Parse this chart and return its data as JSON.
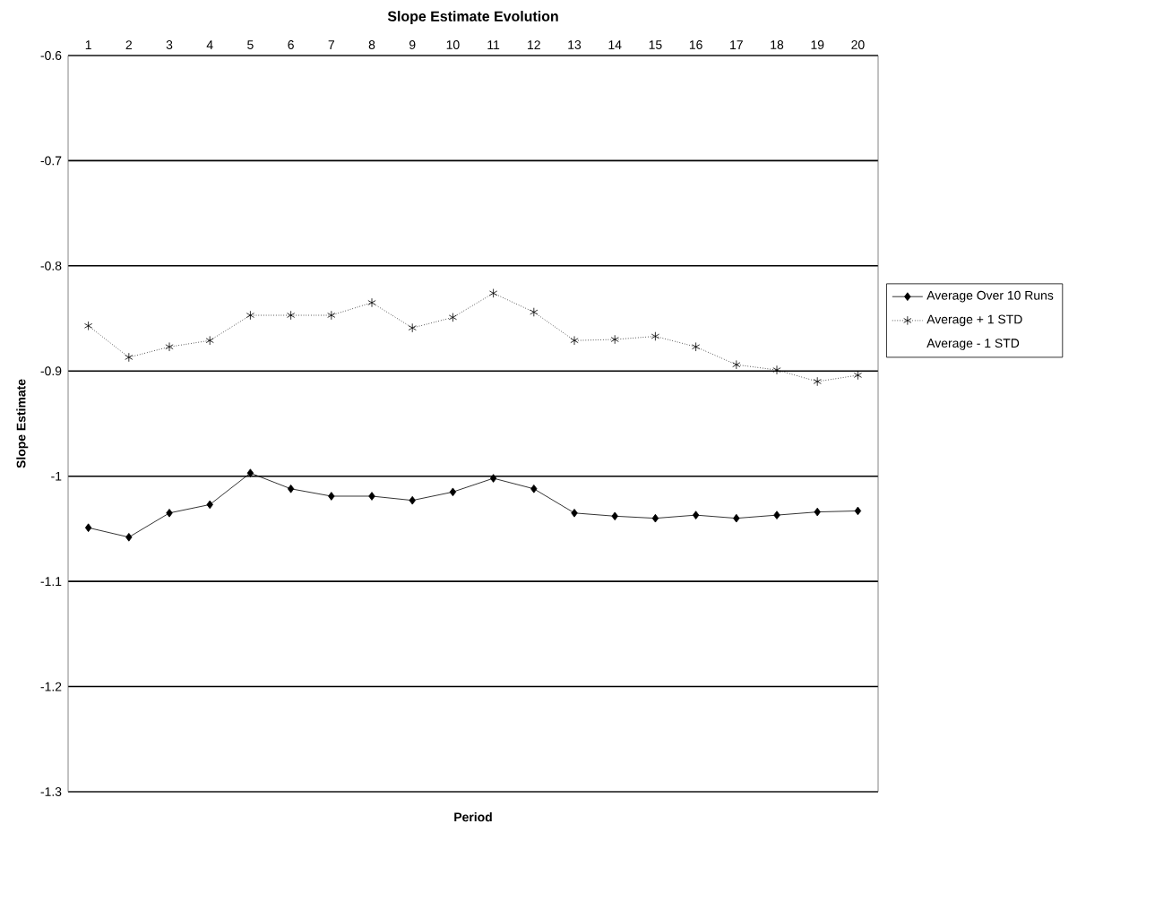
{
  "chart_data": {
    "type": "line",
    "title": "Slope Estimate Evolution",
    "xlabel": "Period",
    "ylabel": "Slope Estimate",
    "categories": [
      "1",
      "2",
      "3",
      "4",
      "5",
      "6",
      "7",
      "8",
      "9",
      "10",
      "11",
      "12",
      "13",
      "14",
      "15",
      "16",
      "17",
      "18",
      "19",
      "20"
    ],
    "ylim": [
      -1.3,
      -0.6
    ],
    "yticks": [
      -1.3,
      -1.2,
      -1.1,
      -1,
      -0.9,
      -0.8,
      -0.7,
      -0.6
    ],
    "grid": "y",
    "legend": "right",
    "series": [
      {
        "name": "Average Over 10 Runs",
        "color": "#000000",
        "marker": "diamond",
        "line_style": "solid",
        "values": [
          -1.049,
          -1.058,
          -1.035,
          -1.027,
          -0.997,
          -1.012,
          -1.019,
          -1.019,
          -1.023,
          -1.015,
          -1.002,
          -1.012,
          -1.035,
          -1.038,
          -1.04,
          -1.037,
          -1.04,
          -1.037,
          -1.034,
          -1.033
        ]
      },
      {
        "name": "Average + 1 STD",
        "color": "#000000",
        "marker": "cross",
        "line_style": "dotted",
        "values": [
          -0.857,
          -0.887,
          -0.877,
          -0.871,
          -0.847,
          -0.847,
          -0.847,
          -0.835,
          -0.859,
          -0.849,
          -0.826,
          -0.844,
          -0.871,
          -0.87,
          -0.867,
          -0.877,
          -0.894,
          -0.899,
          -0.91,
          -0.904
        ]
      },
      {
        "name": "Average - 1 STD",
        "values": [
          null,
          null,
          null,
          null,
          null,
          null,
          null,
          null,
          null,
          null,
          null,
          null,
          null,
          null,
          null,
          null,
          null,
          null,
          null,
          null
        ]
      }
    ]
  }
}
